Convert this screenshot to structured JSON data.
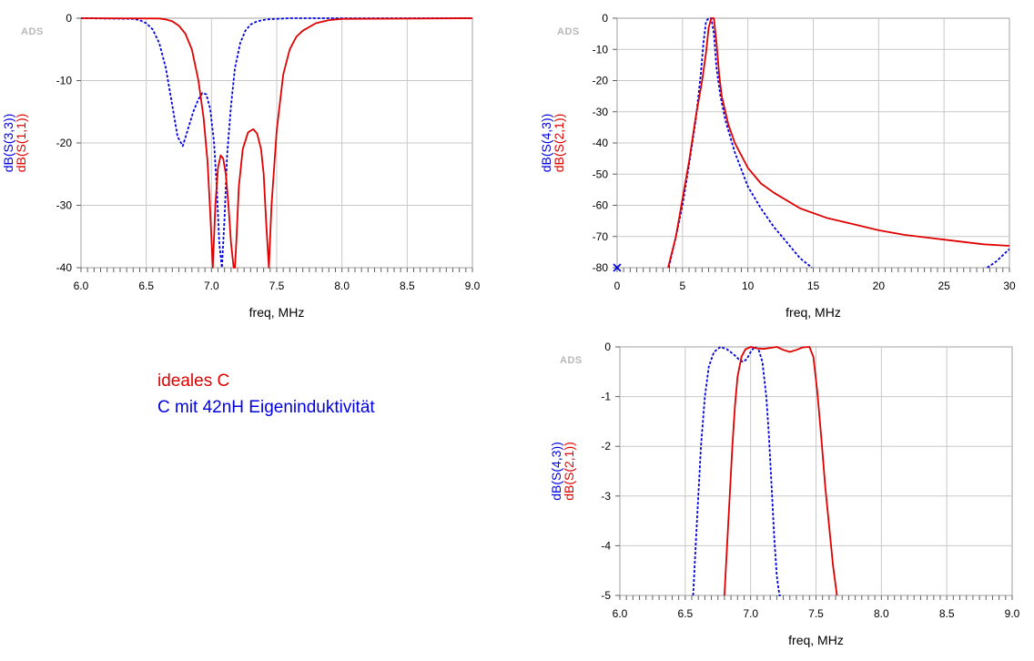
{
  "legend": {
    "items": [
      {
        "label": "ideales C",
        "color": "#e00000"
      },
      {
        "label": "C mit 42nH Eigeninduktivität",
        "color": "#0000e0"
      }
    ]
  },
  "colors": {
    "red": "#e00000",
    "blue": "#0000e0",
    "grid": "#c8c8c8"
  },
  "chart_data": [
    {
      "id": "reflection",
      "type": "line",
      "watermark": "ADS",
      "xlabel": "freq, MHz",
      "ylabels": [
        {
          "text": "dB(S(3,3))",
          "color": "#0000e0"
        },
        {
          "text": "dB(S(1,1))",
          "color": "#e00000"
        }
      ],
      "xlim": [
        6.0,
        9.0
      ],
      "ylim": [
        -40,
        0
      ],
      "xticks": [
        6.0,
        6.5,
        7.0,
        7.5,
        8.0,
        8.5,
        9.0
      ],
      "xtick_labels": [
        "6.0",
        "6.5",
        "7.0",
        "7.5",
        "8.0",
        "8.5",
        "9.0"
      ],
      "yticks": [
        0,
        -10,
        -20,
        -30,
        -40
      ],
      "ytick_labels": [
        "0",
        "-10",
        "-20",
        "-30",
        "-40"
      ],
      "grid": true,
      "series": [
        {
          "name": "dB(S(3,3))",
          "color": "#0000e0",
          "style": "dashed",
          "x": [
            6.0,
            6.4,
            6.45,
            6.5,
            6.55,
            6.6,
            6.65,
            6.7,
            6.74,
            6.78,
            6.82,
            6.86,
            6.9,
            6.93,
            6.96,
            6.99,
            7.02,
            7.04,
            7.06,
            7.08,
            7.1,
            7.12,
            7.15,
            7.18,
            7.22,
            7.26,
            7.3,
            7.35,
            7.42,
            7.5,
            7.6,
            8.0,
            9.0
          ],
          "y": [
            0,
            -0.1,
            -0.3,
            -0.8,
            -1.8,
            -4.0,
            -8.0,
            -14.0,
            -19.0,
            -20.5,
            -17.8,
            -15.0,
            -13.0,
            -12.0,
            -12.2,
            -14.5,
            -20.0,
            -27.0,
            -36.0,
            -40.0,
            -32.0,
            -22.0,
            -14.0,
            -8.0,
            -4.0,
            -2.0,
            -1.0,
            -0.5,
            -0.2,
            -0.1,
            0,
            0,
            0
          ]
        },
        {
          "name": "dB(S(1,1))",
          "color": "#e00000",
          "style": "solid",
          "x": [
            6.0,
            6.6,
            6.65,
            6.7,
            6.75,
            6.8,
            6.85,
            6.9,
            6.94,
            6.97,
            6.99,
            7.01,
            7.03,
            7.05,
            7.07,
            7.09,
            7.11,
            7.13,
            7.15,
            7.17,
            7.18,
            7.19,
            7.21,
            7.24,
            7.28,
            7.32,
            7.35,
            7.38,
            7.4,
            7.42,
            7.44,
            7.46,
            7.5,
            7.55,
            7.6,
            7.65,
            7.7,
            7.8,
            7.9,
            8.0,
            9.0
          ],
          "y": [
            0,
            -0.05,
            -0.2,
            -0.5,
            -1.2,
            -2.5,
            -5.0,
            -10.0,
            -16.0,
            -23.0,
            -31.0,
            -40.0,
            -30.0,
            -24.0,
            -22.0,
            -22.5,
            -25.0,
            -30.0,
            -36.0,
            -40.0,
            -40.0,
            -36.0,
            -27.0,
            -21.0,
            -18.3,
            -17.8,
            -18.5,
            -21.0,
            -25.0,
            -33.0,
            -40.0,
            -30.0,
            -18.0,
            -9.0,
            -5.0,
            -3.0,
            -2.0,
            -0.8,
            -0.3,
            -0.1,
            0
          ]
        }
      ]
    },
    {
      "id": "transmission-wide",
      "type": "line",
      "watermark": "ADS",
      "xlabel": "freq, MHz",
      "ylabels": [
        {
          "text": "dB(S(4,3))",
          "color": "#0000e0"
        },
        {
          "text": "dB(S(2,1))",
          "color": "#e00000"
        }
      ],
      "xlim": [
        0,
        30
      ],
      "ylim": [
        -80,
        0
      ],
      "xticks": [
        0,
        5,
        10,
        15,
        20,
        25,
        30
      ],
      "xtick_labels": [
        "0",
        "5",
        "10",
        "15",
        "20",
        "25",
        "30"
      ],
      "yticks": [
        0,
        -10,
        -20,
        -30,
        -40,
        -50,
        -60,
        -70,
        -80
      ],
      "ytick_labels": [
        "0",
        "-10",
        "-20",
        "-30",
        "-40",
        "-50",
        "-60",
        "-70",
        "-80"
      ],
      "grid": true,
      "series": [
        {
          "name": "dB(S(4,3))",
          "color": "#0000e0",
          "style": "dashed",
          "x": [
            3.95,
            4.5,
            5.0,
            5.5,
            6.0,
            6.4,
            6.6,
            6.8,
            7.0,
            7.2,
            7.4,
            7.6,
            7.9,
            8.3,
            9.0,
            10.0,
            11.0,
            12.0,
            13.0,
            14.0,
            14.9
          ],
          "y": [
            -80,
            -70,
            -60,
            -47,
            -33,
            -18,
            -8,
            -1,
            0,
            0,
            -5,
            -16,
            -25,
            -33,
            -43,
            -54,
            -61,
            -67,
            -72,
            -77,
            -80
          ],
          "extra": {
            "x": [
              28.3,
              29.0,
              30.0
            ],
            "y": [
              -80,
              -78,
              -74
            ]
          }
        },
        {
          "name": "dB(S(2,1))",
          "color": "#e00000",
          "style": "solid",
          "x": [
            3.9,
            4.5,
            5.0,
            5.5,
            6.0,
            6.5,
            6.8,
            7.0,
            7.2,
            7.4,
            7.6,
            7.8,
            8.0,
            8.5,
            9.0,
            10.0,
            11.0,
            12.0,
            14.0,
            16.0,
            18.0,
            20.0,
            22.0,
            25.0,
            28.0,
            30.0
          ],
          "y": [
            -80,
            -70,
            -58,
            -46,
            -32,
            -20,
            -11,
            -3,
            0,
            0,
            -8,
            -18,
            -25,
            -34,
            -40,
            -48,
            -53,
            -56,
            -61,
            -64,
            -66,
            -68,
            -69.5,
            -71,
            -72.5,
            -73
          ]
        }
      ],
      "marker": {
        "x": 0,
        "y": -80,
        "symbol": "x"
      }
    },
    {
      "id": "transmission-zoom",
      "type": "line",
      "watermark": "ADS",
      "xlabel": "freq, MHz",
      "ylabels": [
        {
          "text": "dB(S(4,3))",
          "color": "#0000e0"
        },
        {
          "text": "dB(S(2,1))",
          "color": "#e00000"
        }
      ],
      "xlim": [
        6.0,
        9.0
      ],
      "ylim": [
        -5,
        0
      ],
      "xticks": [
        6.0,
        6.5,
        7.0,
        7.5,
        8.0,
        8.5,
        9.0
      ],
      "xtick_labels": [
        "6.0",
        "6.5",
        "7.0",
        "7.5",
        "8.0",
        "8.5",
        "9.0"
      ],
      "yticks": [
        0,
        -1,
        -2,
        -3,
        -4,
        -5
      ],
      "ytick_labels": [
        "0",
        "-1",
        "-2",
        "-3",
        "-4",
        "-5"
      ],
      "grid": true,
      "series": [
        {
          "name": "dB(S(4,3))",
          "color": "#0000e0",
          "style": "dashed",
          "x": [
            6.56,
            6.58,
            6.6,
            6.62,
            6.65,
            6.68,
            6.72,
            6.77,
            6.82,
            6.87,
            6.91,
            6.94,
            6.97,
            7.0,
            7.03,
            7.06,
            7.09,
            7.12,
            7.14,
            7.16,
            7.18,
            7.2,
            7.22,
            7.23
          ],
          "y": [
            -5,
            -4.0,
            -3.0,
            -2.0,
            -1.0,
            -0.4,
            -0.1,
            0,
            -0.05,
            -0.15,
            -0.25,
            -0.3,
            -0.25,
            -0.1,
            0,
            -0.05,
            -0.3,
            -1.0,
            -1.8,
            -2.8,
            -3.8,
            -4.6,
            -5,
            -5
          ]
        },
        {
          "name": "dB(S(2,1))",
          "color": "#e00000",
          "style": "solid",
          "x": [
            6.8,
            6.82,
            6.84,
            6.86,
            6.88,
            6.9,
            6.93,
            6.96,
            7.0,
            7.05,
            7.1,
            7.15,
            7.2,
            7.25,
            7.3,
            7.35,
            7.4,
            7.45,
            7.48,
            7.51,
            7.54,
            7.57,
            7.6,
            7.63,
            7.66
          ],
          "y": [
            -5,
            -4.0,
            -3.0,
            -2.0,
            -1.2,
            -0.6,
            -0.2,
            -0.05,
            0,
            -0.03,
            -0.04,
            -0.02,
            0,
            -0.06,
            -0.1,
            -0.06,
            -0.01,
            0,
            -0.2,
            -0.9,
            -1.8,
            -2.8,
            -3.6,
            -4.4,
            -5
          ]
        }
      ]
    }
  ]
}
